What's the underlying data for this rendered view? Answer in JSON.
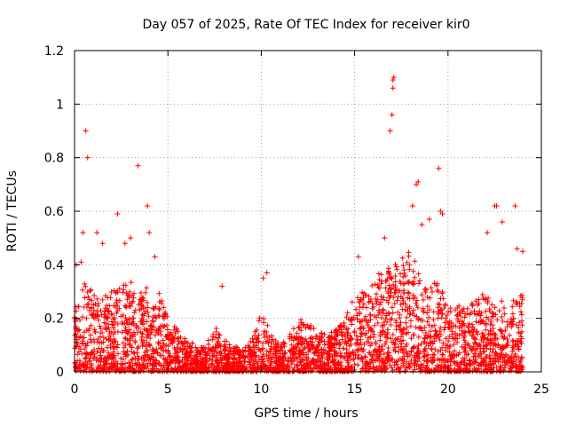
{
  "colors": {
    "marker": "#ff0000",
    "grid": "#a0a0a0",
    "axis": "#000000",
    "background": "#ffffff"
  },
  "chart_data": {
    "type": "scatter",
    "title": "Day 057 of 2025, Rate Of TEC Index for receiver kir0",
    "xlabel": "GPS time / hours",
    "ylabel": "ROTI / TECUs",
    "xlim": [
      0,
      25
    ],
    "ylim": [
      0,
      1.2
    ],
    "xticks": [
      0,
      5,
      10,
      15,
      20,
      25
    ],
    "yticks": [
      0,
      0.2,
      0.4,
      0.6,
      0.8,
      1,
      1.2
    ],
    "xtick_labels": [
      "0",
      "5",
      "10",
      "15",
      "20",
      "25"
    ],
    "ytick_labels": [
      "0",
      "0.2",
      "0.4",
      "0.6",
      "0.8",
      "1",
      "1.2"
    ],
    "grid": true,
    "marker": "+",
    "series": [
      {
        "name": "ROTI",
        "envelope_x": [
          0,
          0.5,
          1,
          1.5,
          2,
          2.5,
          3,
          3.5,
          4,
          4.5,
          5,
          5.5,
          6,
          6.5,
          7,
          7.5,
          8,
          8.5,
          9,
          9.5,
          10,
          10.5,
          11,
          11.5,
          12,
          12.5,
          13,
          13.5,
          14,
          14.5,
          15,
          15.5,
          16,
          16.5,
          17,
          17.5,
          18,
          18.5,
          19,
          19.5,
          20,
          20.5,
          21,
          21.5,
          22,
          22.5,
          23,
          23.5,
          24
        ],
        "envelope_y": [
          0.27,
          0.35,
          0.3,
          0.28,
          0.3,
          0.32,
          0.34,
          0.3,
          0.32,
          0.3,
          0.2,
          0.16,
          0.12,
          0.1,
          0.09,
          0.18,
          0.12,
          0.1,
          0.08,
          0.12,
          0.22,
          0.16,
          0.1,
          0.14,
          0.2,
          0.18,
          0.16,
          0.14,
          0.16,
          0.2,
          0.3,
          0.3,
          0.36,
          0.38,
          0.4,
          0.42,
          0.46,
          0.36,
          0.32,
          0.34,
          0.24,
          0.25,
          0.24,
          0.27,
          0.3,
          0.24,
          0.28,
          0.27,
          0.3
        ],
        "outliers": [
          [
            0.1,
            0.4
          ],
          [
            0.35,
            0.41
          ],
          [
            0.45,
            0.52
          ],
          [
            0.6,
            0.9
          ],
          [
            0.7,
            0.8
          ],
          [
            1.2,
            0.52
          ],
          [
            1.5,
            0.48
          ],
          [
            2.3,
            0.59
          ],
          [
            2.7,
            0.48
          ],
          [
            3.0,
            0.5
          ],
          [
            3.4,
            0.77
          ],
          [
            3.9,
            0.62
          ],
          [
            4.0,
            0.52
          ],
          [
            4.3,
            0.43
          ],
          [
            7.9,
            0.32
          ],
          [
            10.1,
            0.35
          ],
          [
            10.3,
            0.37
          ],
          [
            15.2,
            0.43
          ],
          [
            16.6,
            0.5
          ],
          [
            16.9,
            0.9
          ],
          [
            17.0,
            0.96
          ],
          [
            17.05,
            1.06
          ],
          [
            17.05,
            1.09
          ],
          [
            17.1,
            1.1
          ],
          [
            18.1,
            0.62
          ],
          [
            18.3,
            0.7
          ],
          [
            18.4,
            0.71
          ],
          [
            18.6,
            0.55
          ],
          [
            19.0,
            0.57
          ],
          [
            19.5,
            0.76
          ],
          [
            19.6,
            0.6
          ],
          [
            19.7,
            0.59
          ],
          [
            22.1,
            0.52
          ],
          [
            22.5,
            0.62
          ],
          [
            22.6,
            0.62
          ],
          [
            22.9,
            0.56
          ],
          [
            23.6,
            0.62
          ],
          [
            23.7,
            0.46
          ],
          [
            24.0,
            0.45
          ]
        ]
      }
    ]
  }
}
